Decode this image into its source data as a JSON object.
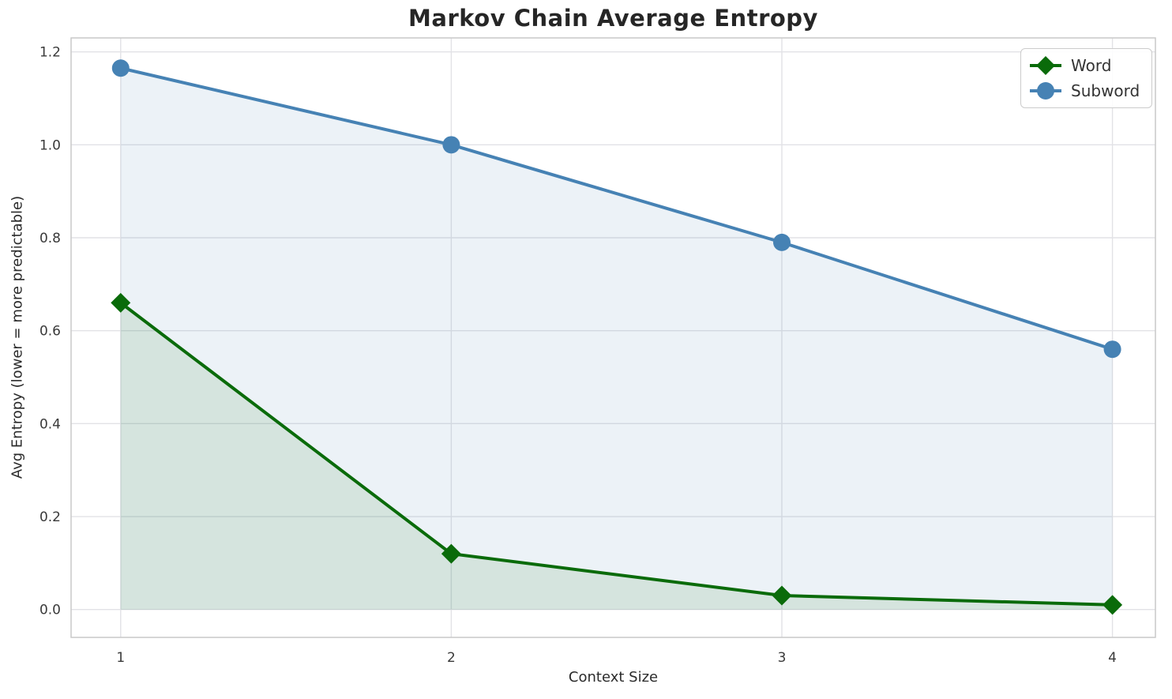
{
  "chart_data": {
    "type": "line",
    "title": "Markov Chain Average Entropy",
    "xlabel": "Context Size",
    "ylabel": "Avg Entropy (lower = more predictable)",
    "x": [
      1,
      2,
      3,
      4
    ],
    "series": [
      {
        "name": "Word",
        "values": [
          0.66,
          0.12,
          0.03,
          0.01
        ],
        "color": "#0a6b0a",
        "marker": "diamond",
        "fill_alpha": 0.1,
        "line_width": 4
      },
      {
        "name": "Subword",
        "values": [
          1.165,
          1.0,
          0.79,
          0.56
        ],
        "color": "#4682b4",
        "marker": "circle",
        "fill_alpha": 0.1,
        "line_width": 4
      }
    ],
    "x_ticks": [
      {
        "value": 1,
        "label": "1"
      },
      {
        "value": 2,
        "label": "2"
      },
      {
        "value": 3,
        "label": "3"
      },
      {
        "value": 4,
        "label": "4"
      }
    ],
    "y_ticks": [
      {
        "value": 0.0,
        "label": "0.0"
      },
      {
        "value": 0.2,
        "label": "0.2"
      },
      {
        "value": 0.4,
        "label": "0.4"
      },
      {
        "value": 0.6,
        "label": "0.6"
      },
      {
        "value": 0.8,
        "label": "0.8"
      },
      {
        "value": 1.0,
        "label": "1.0"
      },
      {
        "value": 1.2,
        "label": "1.2"
      }
    ],
    "xlim": [
      0.85,
      4.13
    ],
    "ylim": [
      -0.06,
      1.23
    ],
    "grid": true,
    "legend_position": "upper right",
    "colors": {
      "grid": "#e2e2e6",
      "axes_border": "#c9c9c9",
      "title_text": "#262626",
      "tick_text": "#3a3a3a"
    }
  }
}
